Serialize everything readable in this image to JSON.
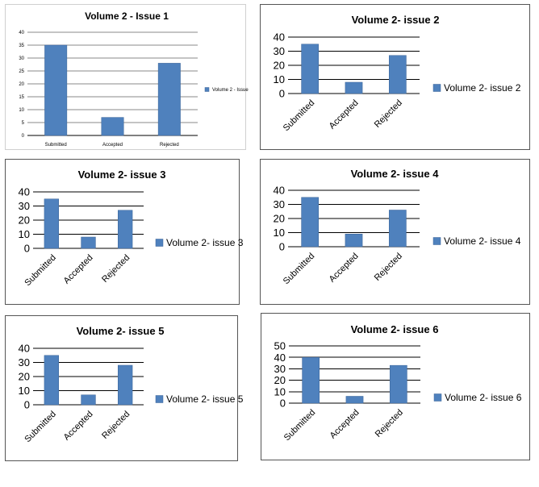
{
  "colors": {
    "bar": "#4f81bd",
    "bar_stroke": "#3a6397",
    "grid": "#000000",
    "border": "#555555"
  },
  "chart_data": [
    {
      "type": "bar",
      "title": "Volume 2 - Issue 1",
      "categories": [
        "Submitted",
        "Accepted",
        "Rejected"
      ],
      "series": [
        {
          "name": "Volume 2 - Issue",
          "values": [
            35,
            7,
            28
          ]
        }
      ],
      "yticks": [
        "0",
        "5",
        "10",
        "15",
        "20",
        "25",
        "30",
        "35",
        "40"
      ],
      "ylim": [
        0,
        40
      ],
      "grid": true,
      "legend": "right"
    },
    {
      "type": "bar",
      "title": "Volume 2- issue 2",
      "categories": [
        "Submitted",
        "Accepted",
        "Rejected"
      ],
      "series": [
        {
          "name": "Volume 2- issue 2",
          "values": [
            35,
            8,
            27
          ]
        }
      ],
      "yticks": [
        "0",
        "10",
        "20",
        "30",
        "40"
      ],
      "ylim": [
        0,
        40
      ],
      "grid": true,
      "legend": "right"
    },
    {
      "type": "bar",
      "title": "Volume 2- issue 3",
      "categories": [
        "Submitted",
        "Accepted",
        "Rejected"
      ],
      "series": [
        {
          "name": "Volume 2- issue 3",
          "values": [
            35,
            8,
            27
          ]
        }
      ],
      "yticks": [
        "0",
        "10",
        "20",
        "30",
        "40"
      ],
      "ylim": [
        0,
        40
      ],
      "grid": true,
      "legend": "right"
    },
    {
      "type": "bar",
      "title": "Volume 2- issue 4",
      "categories": [
        "Submitted",
        "Accepted",
        "Rejected"
      ],
      "series": [
        {
          "name": "Volume 2- issue 4",
          "values": [
            35,
            9,
            26
          ]
        }
      ],
      "yticks": [
        "0",
        "10",
        "20",
        "30",
        "40"
      ],
      "ylim": [
        0,
        40
      ],
      "grid": true,
      "legend": "right"
    },
    {
      "type": "bar",
      "title": "Volume 2- issue 5",
      "categories": [
        "Submitted",
        "Accepted",
        "Rejected"
      ],
      "series": [
        {
          "name": "Volume 2- issue 5",
          "values": [
            35,
            7,
            28
          ]
        }
      ],
      "yticks": [
        "0",
        "10",
        "20",
        "30",
        "40"
      ],
      "ylim": [
        0,
        40
      ],
      "grid": true,
      "legend": "right"
    },
    {
      "type": "bar",
      "title": "Volume 2- issue 6",
      "categories": [
        "Submitted",
        "Accepted",
        "Rejected"
      ],
      "series": [
        {
          "name": "Volume 2- issue 6",
          "values": [
            40,
            6,
            33
          ]
        }
      ],
      "yticks": [
        "0",
        "10",
        "20",
        "30",
        "40",
        "50"
      ],
      "ylim": [
        0,
        50
      ],
      "grid": true,
      "legend": "right"
    }
  ]
}
